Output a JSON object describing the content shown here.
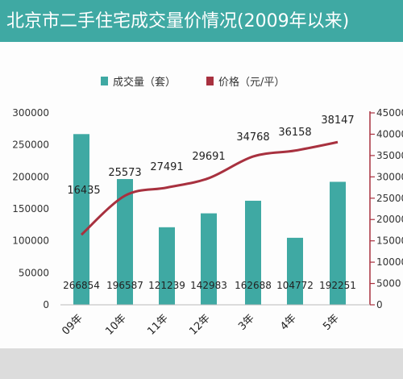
{
  "title": "北京市二手住宅成交量价情况(2009年以来)",
  "colors": {
    "header": "#3fa9a3",
    "bar": "#3fa9a3",
    "line": "#a8313f",
    "axis": "#a8313f",
    "band": "#dcdcdc"
  },
  "chart_data": {
    "type": "bar",
    "categories": [
      "2009年",
      "2010年",
      "2011年",
      "2012年",
      "2013年",
      "2014年",
      "2015年"
    ],
    "category_labels_visible": [
      "09年",
      "10年",
      "11年",
      "12年",
      "3年",
      "4年",
      "5年"
    ],
    "series": [
      {
        "name": "成交量（套）",
        "type": "bar",
        "axis": "left",
        "values": [
          266854,
          196587,
          121239,
          142983,
          162688,
          104772,
          192251
        ]
      },
      {
        "name": "价格（元/平）",
        "type": "line",
        "axis": "right",
        "values": [
          16435,
          25573,
          27491,
          29691,
          34768,
          36158,
          38147
        ]
      }
    ],
    "y_left": {
      "min": 0,
      "max": 300000,
      "ticks": [
        "0",
        "50000",
        "100000",
        "150000",
        "200000",
        "250000",
        "300000"
      ]
    },
    "y_right": {
      "min": 0,
      "max": 45000,
      "ticks": [
        "0",
        "5000",
        "10000",
        "15000",
        "20000",
        "25000",
        "30000",
        "35000",
        "40000",
        "45000"
      ]
    },
    "legend": {
      "placement": "top"
    },
    "grid": false
  }
}
